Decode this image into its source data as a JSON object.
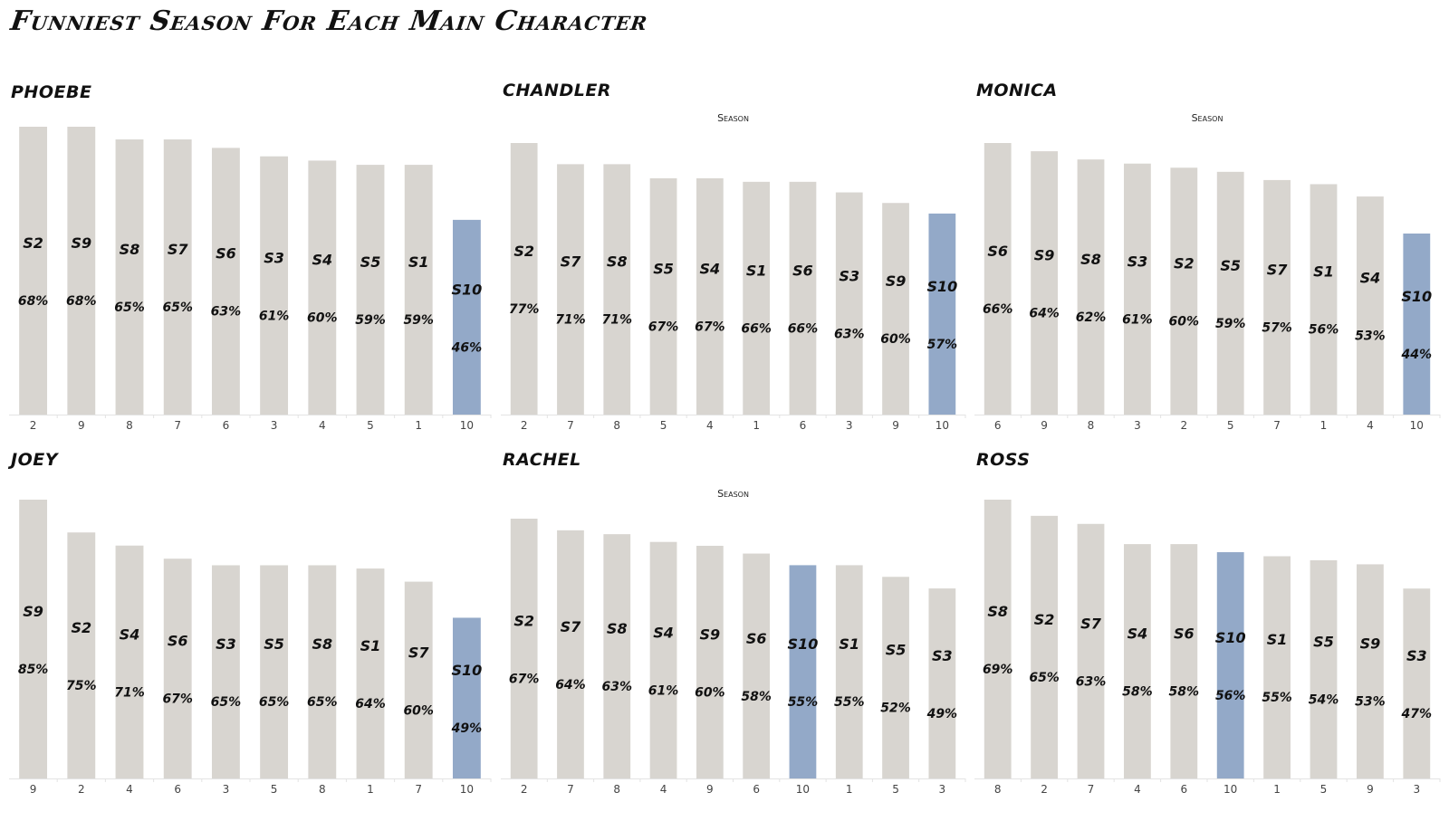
{
  "title": "Funniest Season For Each Main Character",
  "chart_data": [
    {
      "type": "bar",
      "character": "PHOEBE",
      "axis_title": "",
      "categories": [
        "2",
        "9",
        "8",
        "7",
        "6",
        "3",
        "4",
        "5",
        "1",
        "10"
      ],
      "labels": [
        "S2",
        "S9",
        "S8",
        "S7",
        "S6",
        "S3",
        "S4",
        "S5",
        "S1",
        "S10"
      ],
      "value_labels": [
        "68%",
        "68%",
        "65%",
        "65%",
        "63%",
        "61%",
        "60%",
        "59%",
        "59%",
        "46%"
      ],
      "values": [
        68,
        68,
        65,
        65,
        63,
        61,
        60,
        59,
        59,
        46
      ],
      "highlight": "10",
      "ylim": [
        0,
        70
      ]
    },
    {
      "type": "bar",
      "character": "CHANDLER",
      "axis_title": "Season",
      "categories": [
        "2",
        "7",
        "8",
        "5",
        "4",
        "1",
        "6",
        "3",
        "9",
        "10"
      ],
      "labels": [
        "S2",
        "S7",
        "S8",
        "S5",
        "S4",
        "S1",
        "S6",
        "S3",
        "S9",
        "S10"
      ],
      "value_labels": [
        "77%",
        "71%",
        "71%",
        "67%",
        "67%",
        "66%",
        "66%",
        "63%",
        "60%",
        "57%"
      ],
      "values": [
        77,
        71,
        71,
        67,
        67,
        66,
        66,
        63,
        60,
        57
      ],
      "highlight": "10",
      "ylim": [
        0,
        80
      ]
    },
    {
      "type": "bar",
      "character": "MONICA",
      "axis_title": "Season",
      "categories": [
        "6",
        "9",
        "8",
        "3",
        "2",
        "5",
        "7",
        "1",
        "4",
        "10"
      ],
      "labels": [
        "S6",
        "S9",
        "S8",
        "S3",
        "S2",
        "S5",
        "S7",
        "S1",
        "S4",
        "S10"
      ],
      "value_labels": [
        "66%",
        "64%",
        "62%",
        "61%",
        "60%",
        "59%",
        "57%",
        "56%",
        "53%",
        "44%"
      ],
      "values": [
        66,
        64,
        62,
        61,
        60,
        59,
        57,
        56,
        53,
        44
      ],
      "highlight": "10",
      "ylim": [
        0,
        69
      ]
    },
    {
      "type": "bar",
      "character": "JOEY",
      "axis_title": "",
      "categories": [
        "9",
        "2",
        "4",
        "6",
        "3",
        "5",
        "8",
        "1",
        "7",
        "10"
      ],
      "labels": [
        "S9",
        "S2",
        "S4",
        "S6",
        "S3",
        "S5",
        "S8",
        "S1",
        "S7",
        "S10"
      ],
      "value_labels": [
        "85%",
        "75%",
        "71%",
        "67%",
        "65%",
        "65%",
        "65%",
        "64%",
        "60%",
        "49%"
      ],
      "values": [
        85,
        75,
        71,
        67,
        65,
        65,
        65,
        64,
        60,
        49
      ],
      "highlight": "10",
      "ylim": [
        0,
        88
      ]
    },
    {
      "type": "bar",
      "character": "RACHEL",
      "axis_title": "Season",
      "categories": [
        "2",
        "7",
        "8",
        "4",
        "9",
        "6",
        "10",
        "1",
        "5",
        "3"
      ],
      "labels": [
        "S2",
        "S7",
        "S8",
        "S4",
        "S9",
        "S6",
        "S10",
        "S1",
        "S5",
        "S3"
      ],
      "value_labels": [
        "67%",
        "64%",
        "63%",
        "61%",
        "60%",
        "58%",
        "55%",
        "55%",
        "52%",
        "49%"
      ],
      "values": [
        67,
        64,
        63,
        61,
        60,
        58,
        55,
        55,
        52,
        49
      ],
      "highlight": "10",
      "ylim": [
        0,
        72
      ]
    },
    {
      "type": "bar",
      "character": "ROSS",
      "axis_title": "",
      "categories": [
        "8",
        "2",
        "7",
        "4",
        "6",
        "10",
        "1",
        "5",
        "9",
        "3"
      ],
      "labels": [
        "S8",
        "S2",
        "S7",
        "S4",
        "S6",
        "S10",
        "S1",
        "S5",
        "S9",
        "S3"
      ],
      "value_labels": [
        "69%",
        "65%",
        "63%",
        "58%",
        "58%",
        "56%",
        "55%",
        "54%",
        "53%",
        "47%"
      ],
      "values": [
        69,
        65,
        63,
        58,
        58,
        56,
        55,
        54,
        53,
        47
      ],
      "highlight": "10",
      "ylim": [
        0,
        71
      ]
    }
  ],
  "colors": {
    "bar": "#d8d5d0",
    "highlight": "#93a9c8",
    "axis": "#e3e3e3"
  }
}
